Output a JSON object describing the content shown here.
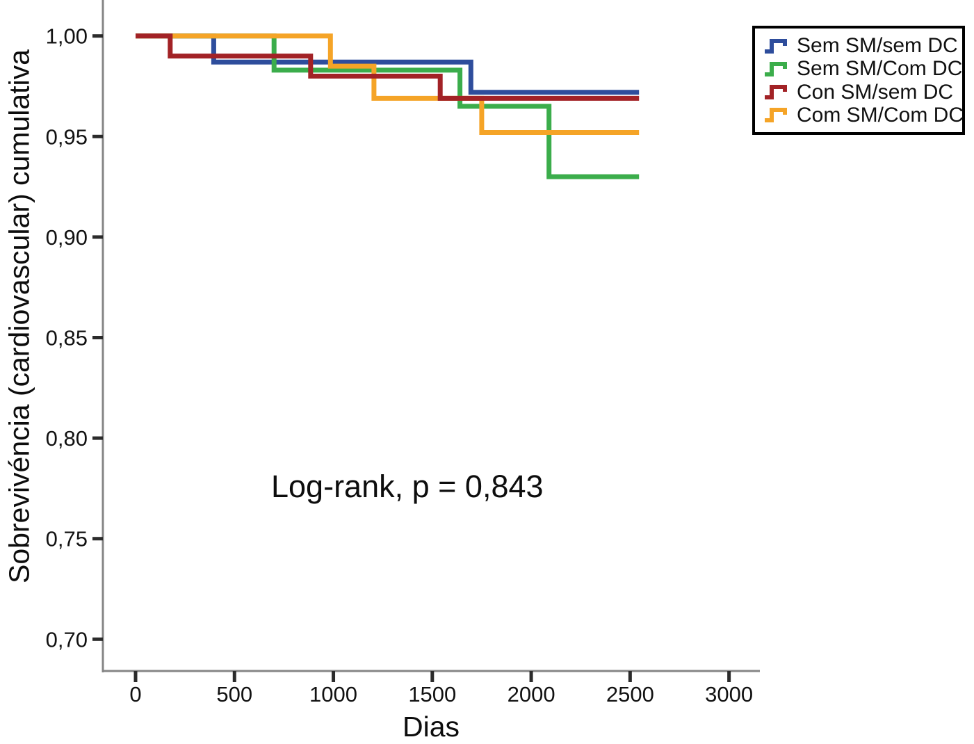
{
  "chart_data": {
    "type": "line",
    "subtype": "kaplan-meier-step",
    "title": "",
    "xlabel": "Dias",
    "ylabel": "Sobrevivéncia (cardiovascular) cumulativa",
    "annotation": "Log-rank, p = 0,843",
    "grid": false,
    "legend_position": "top-right",
    "xlim": [
      -165,
      3155
    ],
    "ylim": [
      0.684,
      1.018
    ],
    "x_tick_values": [
      0,
      500,
      1000,
      1500,
      2000,
      2500,
      3000
    ],
    "x_tick_labels": [
      "0",
      "500",
      "1000",
      "1500",
      "2000",
      "2500",
      "3000"
    ],
    "y_tick_values": [
      1.0,
      0.95,
      0.9,
      0.85,
      0.8,
      0.75,
      0.7
    ],
    "y_tick_labels": [
      "1,00",
      "0,95",
      "0,90",
      "0,85",
      "0,80",
      "0,75",
      "0,70"
    ],
    "axis_color": "#858585",
    "tick_color": "#2b2b2b",
    "series": [
      {
        "name": "Sem SM/sem DC",
        "color": "#2e4d9c",
        "points": [
          [
            0,
            1.0
          ],
          [
            395,
            1.0
          ],
          [
            395,
            0.987
          ],
          [
            1695,
            0.987
          ],
          [
            1695,
            0.972
          ],
          [
            2545,
            0.972
          ]
        ]
      },
      {
        "name": "Sem SM/Com DC",
        "color": "#3bad4b",
        "points": [
          [
            0,
            1.0
          ],
          [
            700,
            1.0
          ],
          [
            700,
            0.983
          ],
          [
            1640,
            0.983
          ],
          [
            1640,
            0.965
          ],
          [
            2090,
            0.965
          ],
          [
            2090,
            0.93
          ],
          [
            2545,
            0.93
          ]
        ]
      },
      {
        "name": "Con SM/sem DC",
        "color": "#a22226",
        "points": [
          [
            0,
            1.0
          ],
          [
            175,
            1.0
          ],
          [
            175,
            0.99
          ],
          [
            885,
            0.99
          ],
          [
            885,
            0.98
          ],
          [
            1540,
            0.98
          ],
          [
            1540,
            0.969
          ],
          [
            2545,
            0.969
          ]
        ]
      },
      {
        "name": "Com SM/Com DC",
        "color": "#f5a427",
        "points": [
          [
            0,
            1.0
          ],
          [
            985,
            1.0
          ],
          [
            985,
            0.985
          ],
          [
            1205,
            0.985
          ],
          [
            1205,
            0.969
          ],
          [
            1750,
            0.969
          ],
          [
            1750,
            0.952
          ],
          [
            2545,
            0.952
          ]
        ]
      }
    ],
    "draw_order": [
      0,
      1,
      3,
      2
    ]
  }
}
